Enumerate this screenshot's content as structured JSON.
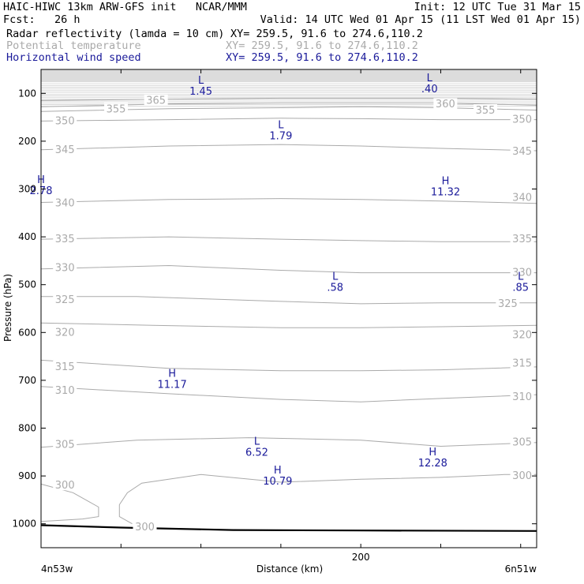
{
  "header": {
    "model": "HAIC-HIWC 13km ARW-GFS init   NCAR/MMM",
    "init": "Init: 12 UTC Tue 31 Mar 15",
    "fcst": "Fcst:   26 h",
    "valid": "Valid: 14 UTC Wed 01 Apr 15 (11 LST Wed 01 Apr 15)"
  },
  "fields": [
    {
      "name": "Radar reflectivity (lamda = 10 cm)",
      "xy": "XY= 259.5, 91.6 to 274.6,110.2",
      "color": "#000000"
    },
    {
      "name": "Potential temperature",
      "xy": "XY= 259.5, 91.6 to 274.6,110.2",
      "color": "#aaaaaa"
    },
    {
      "name": "Horizontal wind speed",
      "xy": "XY= 259.5, 91.6 to 274.6,110.2",
      "color": "#1a1a9a"
    }
  ],
  "chart_data": {
    "type": "line",
    "ylabel": "Pressure (hPa)",
    "xlabel": "Distance (km)",
    "x_left_label": "4n53w",
    "x_right_label": "6n51w",
    "x_ticks": [
      {
        "value": 200,
        "label": "200"
      }
    ],
    "xlim": [
      0,
      310
    ],
    "ylim": [
      1050,
      50
    ],
    "y_ticks": [
      100,
      200,
      300,
      400,
      500,
      600,
      700,
      800,
      900,
      1000
    ],
    "colors": {
      "theta": "#aaaaaa",
      "wind": "#1a1a9a",
      "terrain": "#000000",
      "top_fill": "#dcdcdc"
    },
    "isentropes": [
      {
        "theta": 300,
        "points": [
          [
            0,
            917
          ],
          [
            20,
            935
          ],
          [
            36,
            965
          ],
          [
            36,
            985
          ],
          [
            26,
            990
          ],
          [
            0,
            995
          ]
        ]
      },
      {
        "theta": 300,
        "points": [
          [
            57,
            1000
          ],
          [
            49,
            985
          ],
          [
            49,
            960
          ],
          [
            54,
            935
          ],
          [
            63,
            915
          ],
          [
            100,
            897
          ],
          [
            150,
            913
          ],
          [
            200,
            907
          ],
          [
            250,
            903
          ],
          [
            290,
            897
          ],
          [
            310,
            897
          ]
        ]
      },
      {
        "theta": 305,
        "points": [
          [
            0,
            840
          ],
          [
            60,
            825
          ],
          [
            130,
            820
          ],
          [
            200,
            825
          ],
          [
            250,
            838
          ],
          [
            310,
            830
          ]
        ]
      },
      {
        "theta": 310,
        "points": [
          [
            0,
            713
          ],
          [
            80,
            728
          ],
          [
            150,
            740
          ],
          [
            200,
            745
          ],
          [
            250,
            738
          ],
          [
            310,
            730
          ]
        ]
      },
      {
        "theta": 315,
        "points": [
          [
            0,
            658
          ],
          [
            80,
            675
          ],
          [
            150,
            680
          ],
          [
            200,
            680
          ],
          [
            250,
            678
          ],
          [
            310,
            672
          ]
        ]
      },
      {
        "theta": 320,
        "points": [
          [
            0,
            580
          ],
          [
            70,
            585
          ],
          [
            150,
            590
          ],
          [
            200,
            590
          ],
          [
            250,
            588
          ],
          [
            310,
            585
          ]
        ]
      },
      {
        "theta": 325,
        "points": [
          [
            0,
            525
          ],
          [
            60,
            525
          ],
          [
            150,
            535
          ],
          [
            200,
            540
          ],
          [
            250,
            538
          ],
          [
            310,
            538
          ]
        ]
      },
      {
        "theta": 330,
        "points": [
          [
            0,
            467
          ],
          [
            80,
            460
          ],
          [
            150,
            470
          ],
          [
            200,
            475
          ],
          [
            250,
            475
          ],
          [
            310,
            475
          ]
        ]
      },
      {
        "theta": 335,
        "points": [
          [
            0,
            405
          ],
          [
            80,
            400
          ],
          [
            150,
            405
          ],
          [
            200,
            408
          ],
          [
            250,
            410
          ],
          [
            310,
            410
          ]
        ]
      },
      {
        "theta": 340,
        "points": [
          [
            0,
            328
          ],
          [
            80,
            322
          ],
          [
            150,
            320
          ],
          [
            200,
            322
          ],
          [
            250,
            325
          ],
          [
            310,
            330
          ]
        ]
      },
      {
        "theta": 345,
        "points": [
          [
            0,
            218
          ],
          [
            80,
            210
          ],
          [
            150,
            207
          ],
          [
            200,
            210
          ],
          [
            250,
            215
          ],
          [
            310,
            220
          ]
        ]
      },
      {
        "theta": 350,
        "points": [
          [
            0,
            158
          ],
          [
            80,
            155
          ],
          [
            150,
            152
          ],
          [
            200,
            153
          ],
          [
            250,
            155
          ],
          [
            310,
            155
          ]
        ]
      },
      {
        "theta": 355,
        "points": [
          [
            0,
            138
          ],
          [
            80,
            132
          ],
          [
            150,
            130
          ],
          [
            200,
            128
          ],
          [
            250,
            130
          ],
          [
            310,
            135
          ]
        ]
      },
      {
        "theta": 360,
        "points": [
          [
            0,
            128
          ],
          [
            80,
            122
          ],
          [
            150,
            120
          ],
          [
            200,
            120
          ],
          [
            250,
            120
          ],
          [
            310,
            125
          ]
        ]
      },
      {
        "theta": 365,
        "points": [
          [
            0,
            115
          ],
          [
            80,
            112
          ],
          [
            150,
            110
          ],
          [
            200,
            110
          ],
          [
            250,
            110
          ],
          [
            310,
            112
          ]
        ]
      }
    ],
    "theta_labels": [
      {
        "text": "365",
        "x": 65,
        "p": 115
      },
      {
        "text": "355",
        "x": 40,
        "p": 133
      },
      {
        "text": "360",
        "x": 246,
        "p": 123
      },
      {
        "text": "355",
        "x": 271,
        "p": 136
      },
      {
        "text": "350",
        "x": 8,
        "p": 158
      },
      {
        "text": "350",
        "x": 294,
        "p": 155
      },
      {
        "text": "345",
        "x": 8,
        "p": 218
      },
      {
        "text": "345",
        "x": 294,
        "p": 222
      },
      {
        "text": "340",
        "x": 8,
        "p": 330
      },
      {
        "text": "340",
        "x": 294,
        "p": 318
      },
      {
        "text": "335",
        "x": 8,
        "p": 405
      },
      {
        "text": "335",
        "x": 294,
        "p": 405
      },
      {
        "text": "330",
        "x": 8,
        "p": 465
      },
      {
        "text": "330",
        "x": 294,
        "p": 475
      },
      {
        "text": "325",
        "x": 8,
        "p": 532
      },
      {
        "text": "325",
        "x": 285,
        "p": 540
      },
      {
        "text": "320",
        "x": 8,
        "p": 600
      },
      {
        "text": "320",
        "x": 294,
        "p": 605
      },
      {
        "text": "315",
        "x": 8,
        "p": 672
      },
      {
        "text": "315",
        "x": 294,
        "p": 665
      },
      {
        "text": "310",
        "x": 8,
        "p": 722
      },
      {
        "text": "310",
        "x": 294,
        "p": 735
      },
      {
        "text": "305",
        "x": 8,
        "p": 835
      },
      {
        "text": "305",
        "x": 294,
        "p": 830
      },
      {
        "text": "300",
        "x": 8,
        "p": 920
      },
      {
        "text": "300",
        "x": 294,
        "p": 900
      },
      {
        "text": "300",
        "x": 58,
        "p": 1007
      }
    ],
    "extrema": [
      {
        "type": "L",
        "value": "1.45",
        "x": 100,
        "p": 80
      },
      {
        "type": "L",
        "value": ".40",
        "x": 243,
        "p": 75
      },
      {
        "type": "L",
        "value": "1.79",
        "x": 150,
        "p": 173
      },
      {
        "type": "H",
        "value": "2.78",
        "x": 0,
        "p": 288
      },
      {
        "type": "H",
        "value": "11.32",
        "x": 253,
        "p": 290
      },
      {
        "type": "L",
        "value": ".58",
        "x": 184,
        "p": 490
      },
      {
        "type": "L",
        "value": ".85",
        "x": 300,
        "p": 490
      },
      {
        "type": "H",
        "value": "11.17",
        "x": 82,
        "p": 693
      },
      {
        "type": "L",
        "value": "6.52",
        "x": 135,
        "p": 835
      },
      {
        "type": "H",
        "value": "12.28",
        "x": 245,
        "p": 857
      },
      {
        "type": "H",
        "value": "10.79",
        "x": 148,
        "p": 895
      }
    ],
    "terrain": [
      [
        0,
        1003
      ],
      [
        50,
        1008
      ],
      [
        120,
        1013
      ],
      [
        200,
        1014
      ],
      [
        310,
        1015
      ]
    ],
    "top_fill_p": 75
  }
}
